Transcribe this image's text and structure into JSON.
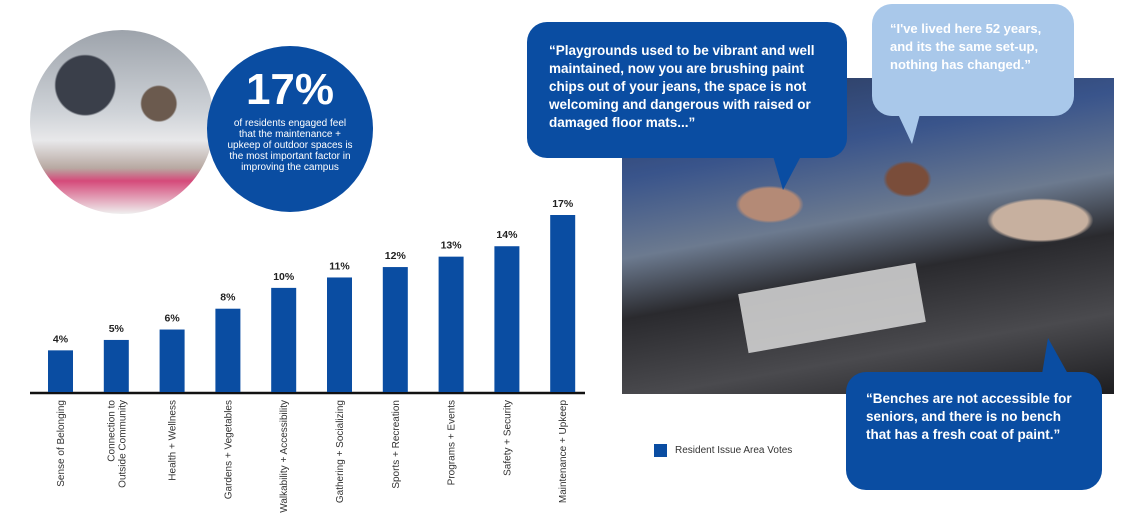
{
  "stat": {
    "value": "17%",
    "text": "of residents engaged feel that the maintenance + upkeep of outdoor spaces is the most important factor in improving the campus"
  },
  "quotes": [
    {
      "text": "“Playgrounds used to be vibrant and well maintained, now you are brushing paint chips out of your jeans, the space is not welcoming and dangerous with raised or damaged floor mats...”"
    },
    {
      "text": "“I've lived here 52 years, and its the same set-up, nothing has changed.”"
    },
    {
      "text": "“Benches are not accessible for seniors, and there is no bench that has a fresh coat of paint.”"
    }
  ],
  "legend": {
    "label": "Resident Issue Area Votes",
    "color": "#0a4da2"
  },
  "chart_data": {
    "type": "bar",
    "categories": [
      "Sense of Belonging",
      "Connection to\nOutside Community",
      "Health + Wellness",
      "Gardens + Vegetables",
      "Walkability + Accessibility",
      "Gathering + Socializing",
      "Sports + Recreation",
      "Programs + Events",
      "Safety + Security",
      "Maintenance + Upkeep"
    ],
    "values": [
      4,
      5,
      6,
      8,
      10,
      11,
      12,
      13,
      14,
      17
    ],
    "value_labels": [
      "4%",
      "5%",
      "6%",
      "8%",
      "10%",
      "11%",
      "12%",
      "13%",
      "14%",
      "17%"
    ],
    "title": "",
    "xlabel": "",
    "ylabel": "",
    "ylim": [
      0,
      17
    ],
    "grid": false,
    "series": [
      {
        "name": "Resident Issue Area Votes",
        "values": [
          4,
          5,
          6,
          8,
          10,
          11,
          12,
          13,
          14,
          17
        ]
      }
    ],
    "color": "#0a4da2"
  }
}
